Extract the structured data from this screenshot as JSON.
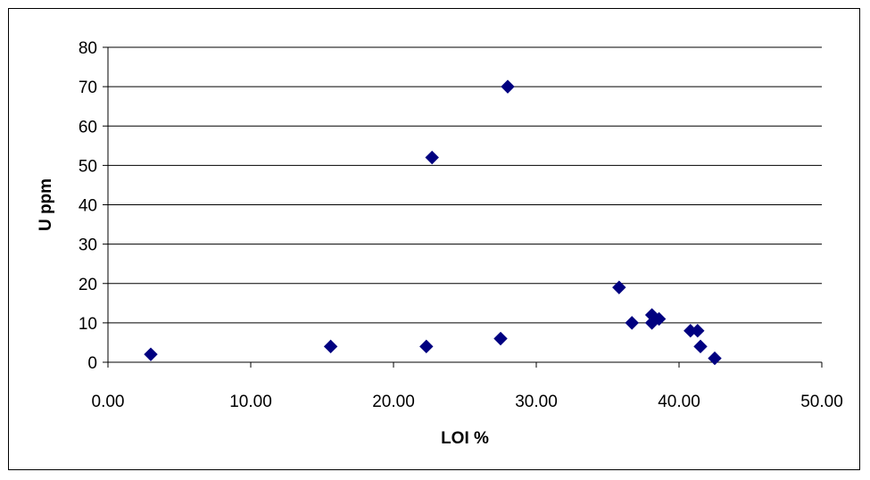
{
  "chart_data": {
    "type": "scatter",
    "title": "",
    "xlabel": "LOI %",
    "ylabel": "U ppm",
    "xlim": [
      0,
      50
    ],
    "ylim": [
      0,
      80
    ],
    "x_ticks": [
      "0.00",
      "10.00",
      "20.00",
      "30.00",
      "40.00",
      "50.00"
    ],
    "y_ticks": [
      "0",
      "10",
      "20",
      "30",
      "40",
      "50",
      "60",
      "70",
      "80"
    ],
    "grid": "horizontal",
    "legend": "none",
    "marker": "diamond",
    "marker_color": "#000080",
    "series": [
      {
        "points": [
          {
            "x": 3.0,
            "y": 2
          },
          {
            "x": 15.6,
            "y": 4
          },
          {
            "x": 22.3,
            "y": 4
          },
          {
            "x": 22.7,
            "y": 52
          },
          {
            "x": 27.5,
            "y": 6
          },
          {
            "x": 28.0,
            "y": 70
          },
          {
            "x": 35.8,
            "y": 19
          },
          {
            "x": 36.7,
            "y": 10
          },
          {
            "x": 38.1,
            "y": 10
          },
          {
            "x": 38.1,
            "y": 12
          },
          {
            "x": 38.6,
            "y": 11
          },
          {
            "x": 40.8,
            "y": 8
          },
          {
            "x": 41.3,
            "y": 8
          },
          {
            "x": 41.5,
            "y": 4
          },
          {
            "x": 42.5,
            "y": 1
          }
        ]
      }
    ]
  }
}
